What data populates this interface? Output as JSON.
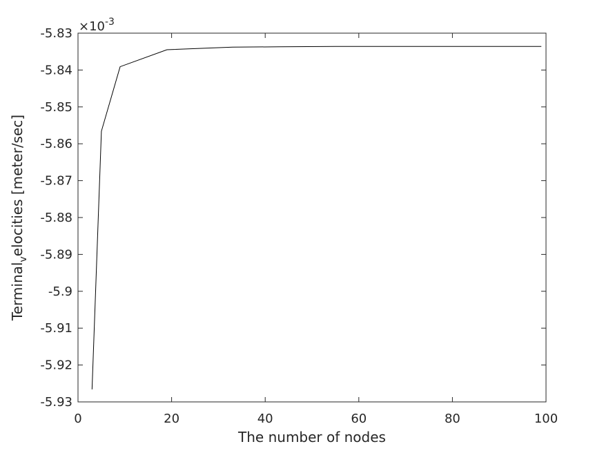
{
  "chart_data": {
    "type": "line",
    "x": [
      3,
      5,
      9,
      19,
      33,
      43,
      55,
      67,
      79,
      91,
      99
    ],
    "y": [
      -5.9266,
      -5.8566,
      -5.8391,
      -5.8345,
      -5.8338,
      -5.8337,
      -5.8336,
      -5.8336,
      -5.8336,
      -5.8336,
      -5.8336
    ],
    "xlabel": "The number of nodes",
    "ylabel_main": "Terminal",
    "ylabel_sub": "v",
    "ylabel_tail": "elocities [meter/sec]",
    "exponent_base": "×10",
    "exponent_power": "-3",
    "xlim": [
      0,
      100
    ],
    "ylim": [
      -5.93,
      -5.83
    ],
    "xticks": [
      "0",
      "20",
      "40",
      "60",
      "80",
      "100"
    ],
    "xtick_values": [
      0,
      20,
      40,
      60,
      80,
      100
    ],
    "yticks": [
      "-5.83",
      "-5.84",
      "-5.85",
      "-5.86",
      "-5.87",
      "-5.88",
      "-5.89",
      "-5.9",
      "-5.91",
      "-5.92",
      "-5.93"
    ],
    "ytick_values": [
      -5.83,
      -5.84,
      -5.85,
      -5.86,
      -5.87,
      -5.88,
      -5.89,
      -5.9,
      -5.91,
      -5.92,
      -5.93
    ],
    "grid": false,
    "line_color": "#000000"
  }
}
